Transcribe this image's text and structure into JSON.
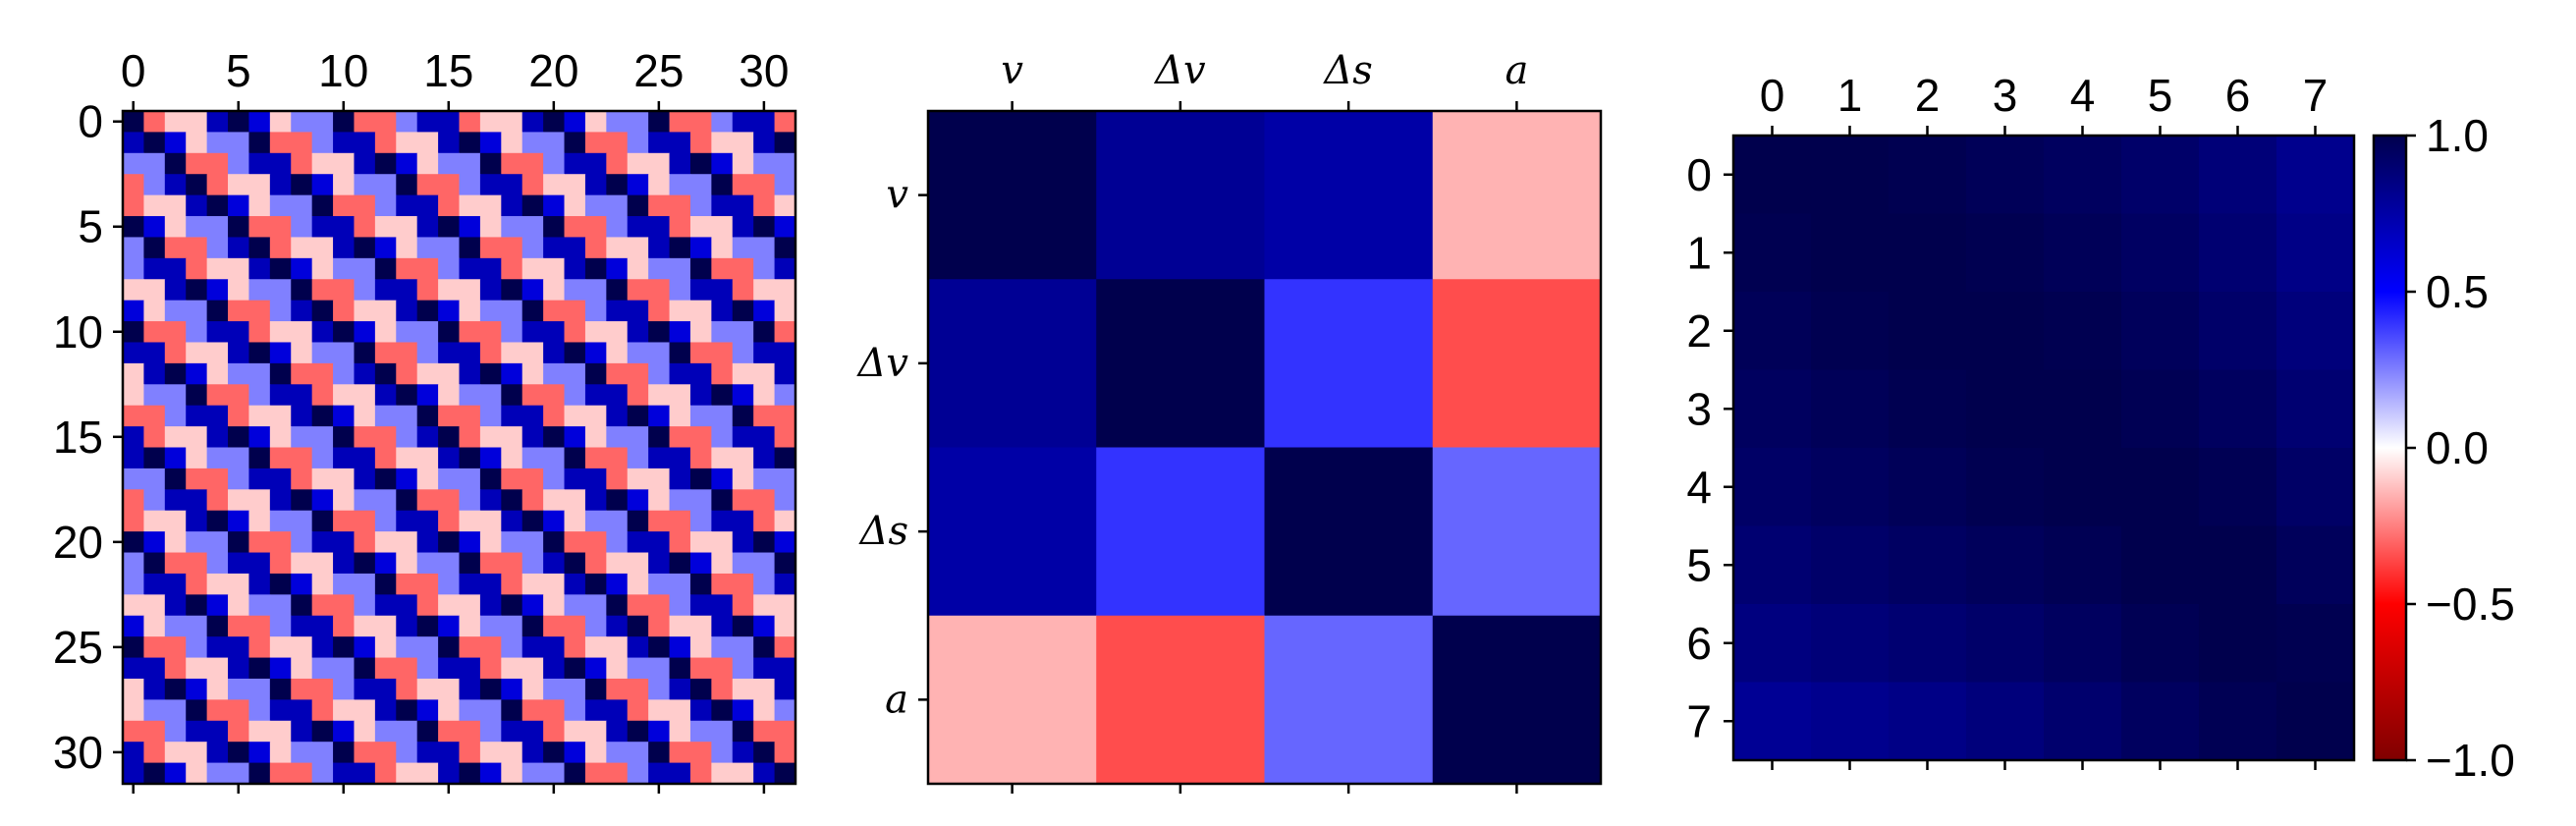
{
  "chart_data": [
    {
      "type": "heatmap",
      "name": "autocorrelation-32",
      "size": 32,
      "x_tick_labels": [
        "0",
        "5",
        "10",
        "15",
        "20",
        "25",
        "30"
      ],
      "y_tick_labels": [
        "0",
        "5",
        "10",
        "15",
        "20",
        "25",
        "30"
      ],
      "tick_values": [
        0,
        5,
        10,
        15,
        20,
        25,
        30
      ],
      "pattern_period": 5,
      "pattern_values": [
        1.0,
        0.7,
        0.25,
        -0.1,
        -0.3,
        0.6
      ],
      "vmin": -1.0,
      "vmax": 1.0
    },
    {
      "type": "heatmap",
      "name": "feature-correlation",
      "labels": [
        "v",
        "Δv",
        "Δs",
        "a"
      ],
      "values": [
        [
          1.0,
          0.8,
          0.75,
          -0.15
        ],
        [
          0.8,
          1.0,
          0.4,
          -0.35
        ],
        [
          0.75,
          0.4,
          1.0,
          0.3
        ],
        [
          -0.15,
          -0.35,
          0.3,
          1.0
        ]
      ],
      "vmin": -1.0,
      "vmax": 1.0
    },
    {
      "type": "heatmap",
      "name": "lag-correlation-8",
      "x_tick_labels": [
        "0",
        "1",
        "2",
        "3",
        "4",
        "5",
        "6",
        "7"
      ],
      "y_tick_labels": [
        "0",
        "1",
        "2",
        "3",
        "4",
        "5",
        "6",
        "7"
      ],
      "values": [
        [
          1.0,
          1.0,
          0.99,
          0.97,
          0.95,
          0.92,
          0.88,
          0.82
        ],
        [
          0.99,
          1.0,
          1.0,
          0.99,
          0.97,
          0.94,
          0.9,
          0.84
        ],
        [
          0.97,
          0.99,
          1.0,
          1.0,
          0.99,
          0.96,
          0.92,
          0.87
        ],
        [
          0.95,
          0.97,
          0.99,
          1.0,
          1.0,
          0.98,
          0.95,
          0.9
        ],
        [
          0.93,
          0.95,
          0.97,
          0.99,
          1.0,
          1.0,
          0.98,
          0.93
        ],
        [
          0.9,
          0.92,
          0.94,
          0.96,
          0.98,
          1.0,
          1.0,
          0.96
        ],
        [
          0.86,
          0.88,
          0.9,
          0.92,
          0.95,
          0.98,
          1.0,
          0.99
        ],
        [
          0.8,
          0.82,
          0.84,
          0.87,
          0.91,
          0.95,
          0.98,
          1.0
        ]
      ],
      "vmin": -1.0,
      "vmax": 1.0
    }
  ],
  "colorbar": {
    "colormap": "seismic_r",
    "tick_labels": [
      "1.0",
      "0.5",
      "0.0",
      "−0.5",
      "−1.0"
    ],
    "tick_values": [
      1.0,
      0.5,
      0.0,
      -0.5,
      -1.0
    ],
    "colors": {
      "max": "#00004d",
      "high": "#0000ff",
      "zero": "#ffffff",
      "low": "#ff0000",
      "min": "#800000"
    }
  }
}
